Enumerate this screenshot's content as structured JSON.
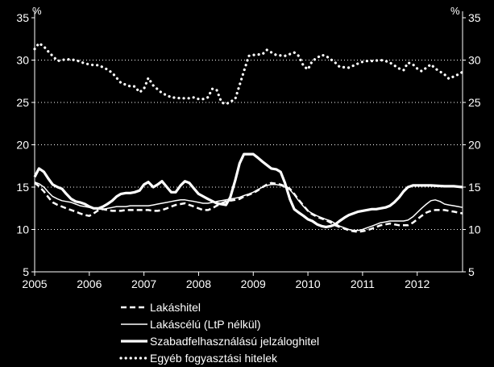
{
  "chart_data": {
    "type": "line",
    "title": "",
    "xlabel": "",
    "ylabel": "",
    "unit_left": "%",
    "unit_right": "%",
    "ylim": [
      5,
      35
    ],
    "yticks": [
      5,
      10,
      15,
      20,
      25,
      30,
      35
    ],
    "xlim": [
      2005,
      2012.83
    ],
    "xticks": [
      2005,
      2006,
      2007,
      2008,
      2009,
      2010,
      2011,
      2012
    ],
    "grid": "horizontal dotted",
    "legend_position": "bottom",
    "x": [
      2005.0,
      2005.08,
      2005.17,
      2005.25,
      2005.33,
      2005.42,
      2005.5,
      2005.58,
      2005.67,
      2005.75,
      2005.83,
      2005.92,
      2006.0,
      2006.08,
      2006.17,
      2006.25,
      2006.33,
      2006.42,
      2006.5,
      2006.58,
      2006.67,
      2006.75,
      2006.83,
      2006.92,
      2007.0,
      2007.08,
      2007.17,
      2007.25,
      2007.33,
      2007.42,
      2007.5,
      2007.58,
      2007.67,
      2007.75,
      2007.83,
      2007.92,
      2008.0,
      2008.08,
      2008.17,
      2008.25,
      2008.33,
      2008.42,
      2008.5,
      2008.58,
      2008.67,
      2008.75,
      2008.83,
      2008.92,
      2009.0,
      2009.08,
      2009.17,
      2009.25,
      2009.33,
      2009.42,
      2009.5,
      2009.58,
      2009.67,
      2009.75,
      2009.83,
      2009.92,
      2010.0,
      2010.08,
      2010.17,
      2010.25,
      2010.33,
      2010.42,
      2010.5,
      2010.58,
      2010.67,
      2010.75,
      2010.83,
      2010.92,
      2011.0,
      2011.08,
      2011.17,
      2011.25,
      2011.33,
      2011.42,
      2011.5,
      2011.58,
      2011.67,
      2011.75,
      2011.83,
      2011.92,
      2012.0,
      2012.08,
      2012.17,
      2012.25,
      2012.33,
      2012.42,
      2012.5,
      2012.58,
      2012.67,
      2012.75,
      2012.83
    ],
    "series": [
      {
        "name": "Lakáshitel",
        "style": "dashed",
        "color": "#ffffff",
        "values": [
          15.5,
          15.1,
          14.5,
          13.8,
          13.2,
          12.9,
          12.7,
          12.5,
          12.3,
          12.1,
          11.9,
          11.7,
          11.6,
          11.9,
          12.3,
          12.4,
          12.3,
          12.2,
          12.2,
          12.2,
          12.3,
          12.3,
          12.3,
          12.3,
          12.3,
          12.3,
          12.2,
          12.2,
          12.3,
          12.5,
          12.7,
          12.9,
          13.0,
          13.1,
          12.9,
          12.7,
          12.5,
          12.3,
          12.3,
          12.5,
          12.8,
          13.1,
          13.3,
          13.4,
          13.5,
          13.6,
          13.9,
          14.1,
          14.3,
          14.6,
          15.0,
          15.3,
          15.5,
          15.4,
          15.3,
          15.1,
          14.8,
          14.2,
          13.5,
          12.8,
          12.2,
          11.8,
          11.5,
          11.3,
          11.1,
          10.8,
          10.5,
          10.3,
          10.1,
          9.9,
          9.8,
          9.7,
          9.8,
          9.9,
          10.1,
          10.3,
          10.5,
          10.6,
          10.7,
          10.6,
          10.5,
          10.5,
          10.5,
          10.8,
          11.2,
          11.6,
          12.0,
          12.2,
          12.3,
          12.3,
          12.3,
          12.2,
          12.1,
          12.0,
          11.9
        ]
      },
      {
        "name": "Lakáscélú (LtP nélkül)",
        "style": "thin-solid",
        "color": "#ffffff",
        "values": [
          15.6,
          15.4,
          15.0,
          14.4,
          13.9,
          13.6,
          13.4,
          13.3,
          13.2,
          13.0,
          12.8,
          12.7,
          12.6,
          12.5,
          12.4,
          12.4,
          12.5,
          12.6,
          12.7,
          12.7,
          12.7,
          12.8,
          12.8,
          12.8,
          12.8,
          12.8,
          12.9,
          13.0,
          13.1,
          13.2,
          13.3,
          13.4,
          13.5,
          13.5,
          13.4,
          13.3,
          13.2,
          13.1,
          13.1,
          13.2,
          13.3,
          13.4,
          13.5,
          13.6,
          13.7,
          13.8,
          14.0,
          14.2,
          14.4,
          14.7,
          15.0,
          15.2,
          15.3,
          15.3,
          15.2,
          15.0,
          14.7,
          14.1,
          13.4,
          12.7,
          12.2,
          11.9,
          11.6,
          11.4,
          11.2,
          11.0,
          10.7,
          10.4,
          10.2,
          10.0,
          9.9,
          9.9,
          10.0,
          10.2,
          10.4,
          10.6,
          10.8,
          10.9,
          11.0,
          11.0,
          11.0,
          11.0,
          11.1,
          11.5,
          12.0,
          12.5,
          13.0,
          13.4,
          13.5,
          13.3,
          13.0,
          12.9,
          12.8,
          12.7,
          12.6
        ]
      },
      {
        "name": "Szabadfelhasználású jelzáloghitel",
        "style": "thick-solid",
        "color": "#ffffff",
        "values": [
          16.2,
          17.2,
          16.8,
          16.0,
          15.3,
          15.0,
          14.8,
          14.2,
          13.6,
          13.3,
          13.2,
          13.0,
          12.7,
          12.5,
          12.5,
          12.7,
          13.0,
          13.4,
          13.9,
          14.2,
          14.3,
          14.3,
          14.4,
          14.6,
          15.3,
          15.6,
          15.0,
          15.3,
          15.7,
          15.0,
          14.4,
          14.4,
          15.2,
          15.7,
          15.5,
          14.8,
          14.2,
          13.6,
          13.1,
          12.9,
          13.8,
          15.8,
          17.8,
          18.9,
          18.9,
          18.5,
          18.0,
          17.6,
          17.2,
          17.1,
          16.8,
          15.5,
          13.6,
          12.4,
          12.0,
          11.6,
          11.2,
          11.0,
          10.6,
          10.4,
          10.3,
          10.4,
          10.6,
          11.0,
          11.4,
          11.7,
          11.9,
          12.1,
          12.2,
          12.3,
          12.4,
          12.4,
          12.5,
          12.6,
          12.8,
          13.2,
          13.8,
          14.5,
          15.0,
          15.2,
          15.2,
          15.2,
          15.1,
          15.1,
          15.0
        ],
        "x": [
          2005.0,
          2005.08,
          2005.17,
          2005.25,
          2005.33,
          2005.42,
          2005.5,
          2005.58,
          2005.67,
          2005.75,
          2005.83,
          2005.92,
          2006.0,
          2006.08,
          2006.17,
          2006.25,
          2006.33,
          2006.42,
          2006.5,
          2006.58,
          2006.67,
          2006.75,
          2006.83,
          2006.92,
          2007.0,
          2007.08,
          2007.17,
          2007.25,
          2007.33,
          2007.42,
          2007.5,
          2007.58,
          2007.67,
          2007.75,
          2007.83,
          2007.92,
          2008.0,
          2008.17,
          2008.33,
          2008.5,
          2008.58,
          2008.67,
          2008.75,
          2008.83,
          2009.0,
          2009.08,
          2009.17,
          2009.25,
          2009.33,
          2009.42,
          2009.5,
          2009.58,
          2009.67,
          2009.75,
          2009.83,
          2009.92,
          2010.0,
          2010.08,
          2010.17,
          2010.25,
          2010.33,
          2010.42,
          2010.5,
          2010.58,
          2010.67,
          2010.75,
          2010.83,
          2010.92,
          2011.0,
          2011.08,
          2011.17,
          2011.25,
          2011.33,
          2011.42,
          2011.5,
          2011.58,
          2011.67,
          2011.75,
          2011.83,
          2011.92,
          2012.0,
          2012.25,
          2012.5,
          2012.67,
          2012.83
        ]
      },
      {
        "name": "Egyéb fogyasztási hitelek",
        "style": "dotted",
        "color": "#ffffff",
        "values": [
          31.3,
          32.0,
          31.6,
          31.0,
          29.9,
          30.1,
          30.0,
          29.6,
          29.4,
          29.4,
          28.9,
          28.5,
          27.3,
          26.9,
          26.9,
          26.2,
          26.6,
          27.9,
          27.0,
          26.1,
          25.6,
          25.5,
          25.5,
          25.6,
          25.4,
          25.4,
          25.6,
          26.6,
          26.5,
          25.0,
          24.8,
          25.4,
          28.7,
          30.5,
          30.6,
          30.7,
          31.2,
          30.6,
          30.5,
          30.9,
          30.5,
          29.3,
          28.9,
          29.9,
          30.6,
          30.5,
          29.7,
          29.2,
          29.1,
          29.6,
          29.8,
          29.9,
          29.9,
          30.0,
          29.9,
          29.7,
          29.0,
          28.8,
          29.7,
          29.5,
          29.0,
          28.7,
          29.1,
          29.5,
          29.0,
          28.3,
          27.8,
          28.3,
          28.6
        ],
        "x": [
          2005.0,
          2005.08,
          2005.17,
          2005.25,
          2005.42,
          2005.58,
          2005.75,
          2005.92,
          2006.08,
          2006.17,
          2006.33,
          2006.42,
          2006.58,
          2006.75,
          2006.83,
          2006.92,
          2007.0,
          2007.08,
          2007.17,
          2007.33,
          2007.5,
          2007.67,
          2007.83,
          2007.92,
          2008.0,
          2008.08,
          2008.17,
          2008.25,
          2008.33,
          2008.42,
          2008.5,
          2008.67,
          2008.83,
          2008.92,
          2009.0,
          2009.17,
          2009.25,
          2009.42,
          2009.58,
          2009.75,
          2009.83,
          2009.92,
          2010.0,
          2010.08,
          2010.25,
          2010.33,
          2010.5,
          2010.58,
          2010.75,
          2010.92,
          2011.0,
          2011.08,
          2011.17,
          2011.33,
          2011.42,
          2011.5,
          2011.67,
          2011.75,
          2011.83,
          2011.92,
          2012.0,
          2012.08,
          2012.17,
          2012.25,
          2012.33,
          2012.5,
          2012.58,
          2012.75,
          2012.83
        ]
      }
    ]
  }
}
